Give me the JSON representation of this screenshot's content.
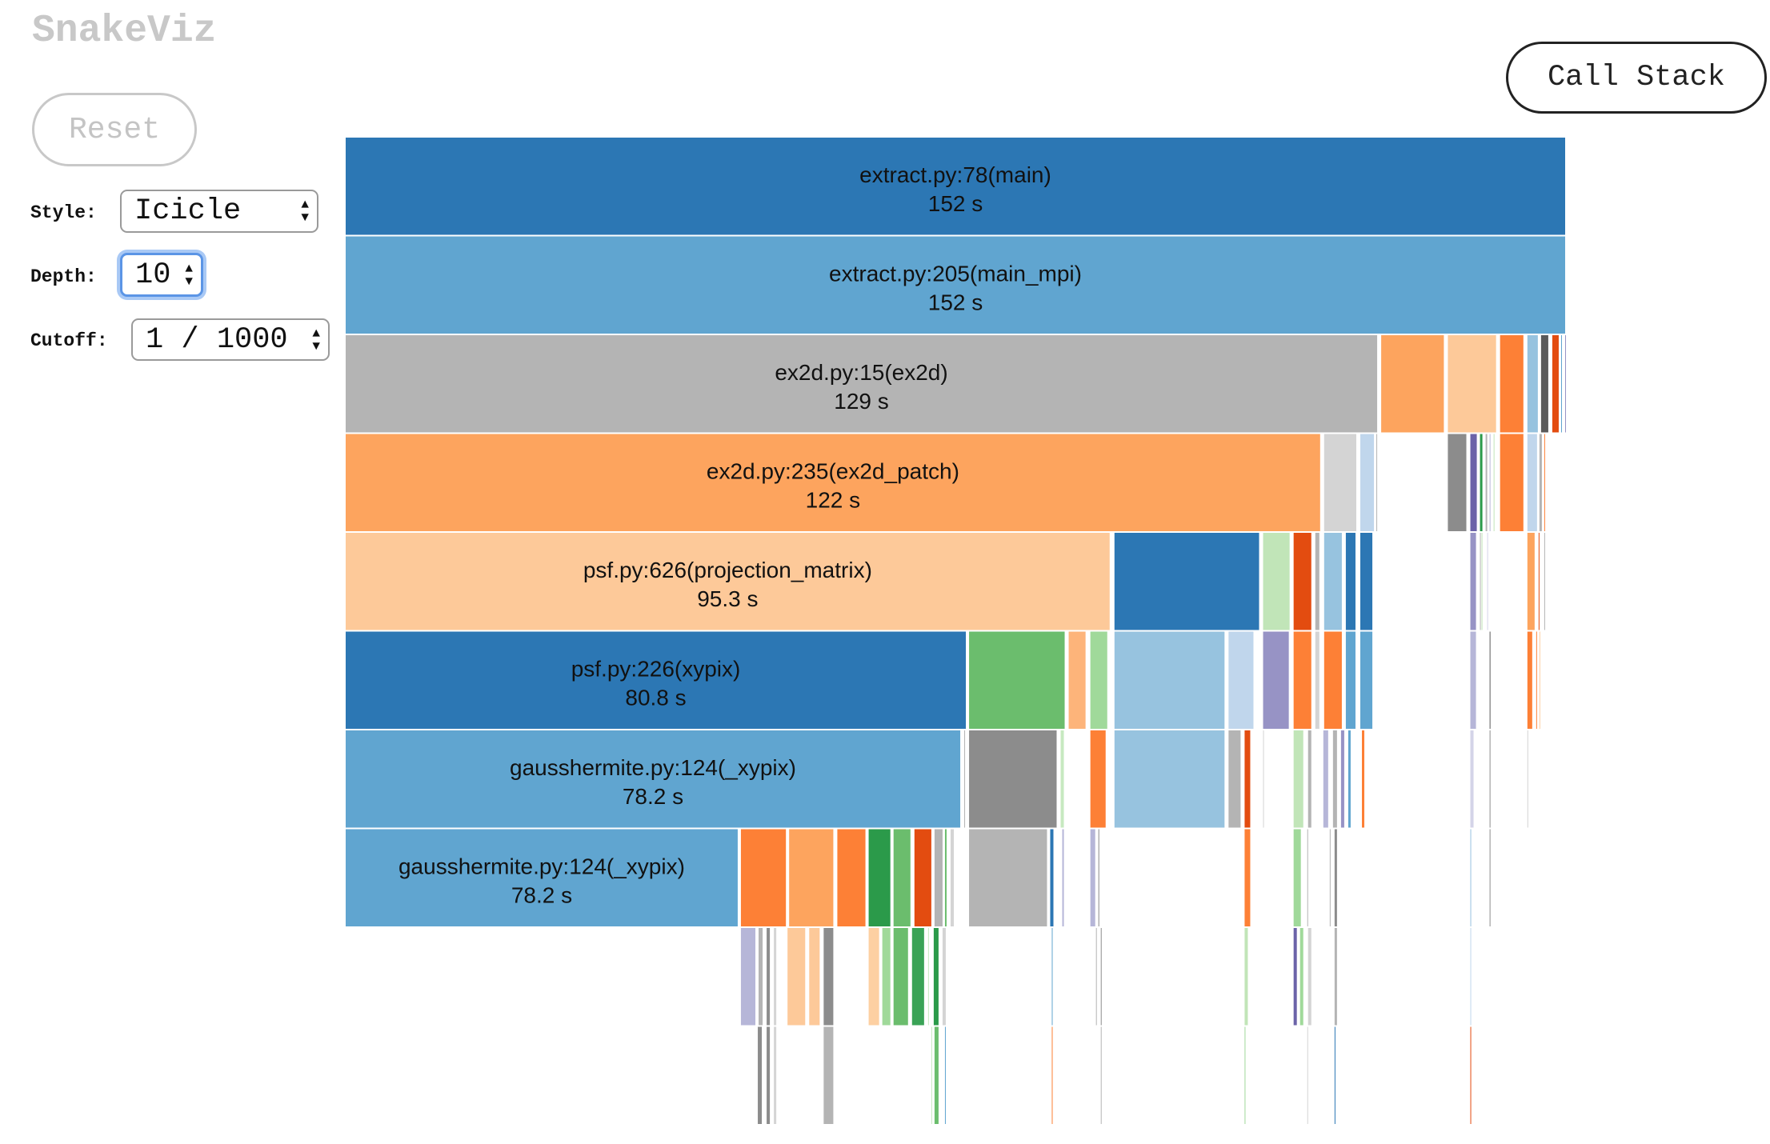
{
  "app": {
    "title": "SnakeViz"
  },
  "controls": {
    "reset_label": "Reset",
    "call_stack_label": "Call Stack",
    "style_label": "Style:",
    "style_value": "Icicle",
    "depth_label": "Depth:",
    "depth_value": "10",
    "cutoff_label": "Cutoff:",
    "cutoff_value": "1 / 1000"
  },
  "chart_data": {
    "type": "icicle",
    "total_seconds": 152,
    "depth": 10,
    "labeled_nodes": [
      {
        "depth": 0,
        "name": "extract.py:78(main)",
        "time": "152 s",
        "start": 0,
        "end": 152.0,
        "color": "#2c77b4"
      },
      {
        "depth": 1,
        "name": "extract.py:205(main_mpi)",
        "time": "152 s",
        "start": 0,
        "end": 152.0,
        "color": "#60a5d0"
      },
      {
        "depth": 2,
        "name": "ex2d.py:15(ex2d)",
        "time": "129 s",
        "start": 0,
        "end": 128.6,
        "color": "#b4b4b4"
      },
      {
        "depth": 3,
        "name": "ex2d.py:235(ex2d_patch)",
        "time": "122 s",
        "start": 0,
        "end": 121.5,
        "color": "#fda45e"
      },
      {
        "depth": 4,
        "name": "psf.py:626(projection_matrix)",
        "time": "95.3 s",
        "start": 0,
        "end": 95.3,
        "color": "#fdc999"
      },
      {
        "depth": 5,
        "name": "psf.py:226(xypix)",
        "time": "80.8 s",
        "start": 0,
        "end": 77.4,
        "color": "#2c77b4"
      },
      {
        "depth": 6,
        "name": "gausshermite.py:124(_xypix)",
        "time": "78.2 s",
        "start": 0,
        "end": 76.7,
        "color": "#60a5d0"
      },
      {
        "depth": 7,
        "name": "gausshermite.py:124(_xypix)",
        "time": "78.2 s",
        "start": 0,
        "end": 49.0,
        "color": "#60a5d0"
      }
    ],
    "unlabeled_nodes": [
      [
        2,
        128.9,
        136.9,
        "#fda45e"
      ],
      [
        2,
        137.2,
        143.4,
        "#fdc999"
      ],
      [
        2,
        143.7,
        146.8,
        "#fd8036"
      ],
      [
        2,
        147.1,
        148.6,
        "#97c3df"
      ],
      [
        2,
        148.8,
        149.9,
        "#5a5a5a"
      ],
      [
        2,
        150.2,
        151.2,
        "#e34c10"
      ],
      [
        2,
        151.3,
        151.6,
        "#60a5d0"
      ],
      [
        2,
        151.8,
        151.9,
        "#9793c5"
      ],
      [
        3,
        121.8,
        126.0,
        "#d4d4d4"
      ],
      [
        3,
        126.3,
        128.2,
        "#c0d6ec"
      ],
      [
        3,
        128.3,
        128.4,
        "#b4b4b4"
      ],
      [
        3,
        137.2,
        139.7,
        "#8c8c8c"
      ],
      [
        3,
        140.0,
        141.0,
        "#6b63a8"
      ],
      [
        3,
        141.2,
        141.7,
        "#2b9a4a"
      ],
      [
        3,
        141.9,
        142.3,
        "#b4b4b4"
      ],
      [
        3,
        142.4,
        142.7,
        "#b6b6d8"
      ],
      [
        3,
        142.9,
        143.0,
        "#c1e5b8"
      ],
      [
        3,
        143.7,
        146.8,
        "#fd8036"
      ],
      [
        3,
        147.1,
        148.5,
        "#c0d6ec"
      ],
      [
        3,
        148.6,
        149.1,
        "#b4b4b4"
      ],
      [
        3,
        149.2,
        149.4,
        "#fd8036"
      ],
      [
        4,
        95.7,
        113.9,
        "#2c77b4"
      ],
      [
        4,
        114.2,
        117.7,
        "#c1e5b8"
      ],
      [
        4,
        118.0,
        120.4,
        "#e34c10"
      ],
      [
        4,
        120.7,
        121.4,
        "#b4b4b4"
      ],
      [
        4,
        121.8,
        124.2,
        "#97c3df"
      ],
      [
        4,
        124.5,
        125.9,
        "#2c77b4"
      ],
      [
        4,
        126.3,
        128.0,
        "#2c77b4"
      ],
      [
        4,
        140.0,
        140.9,
        "#9793c5"
      ],
      [
        4,
        141.2,
        141.3,
        "#b4b4b4"
      ],
      [
        4,
        141.4,
        141.6,
        "#c1e5b8"
      ],
      [
        4,
        142.1,
        142.3,
        "#d4d4e8"
      ],
      [
        4,
        147.1,
        148.2,
        "#fda45e"
      ],
      [
        4,
        148.5,
        148.8,
        "#e34c10"
      ],
      [
        4,
        149.2,
        149.4,
        "#b4b4b4"
      ],
      [
        5,
        77.6,
        89.7,
        "#6bbd6d"
      ],
      [
        5,
        90.0,
        92.3,
        "#fdb47a"
      ],
      [
        5,
        92.7,
        95.0,
        "#a0d99a"
      ],
      [
        5,
        95.7,
        109.6,
        "#97c3df"
      ],
      [
        5,
        109.9,
        113.2,
        "#c0d6ec"
      ],
      [
        5,
        114.2,
        117.6,
        "#9793c5"
      ],
      [
        5,
        118.0,
        120.4,
        "#fd8036"
      ],
      [
        5,
        120.7,
        121.4,
        "#d4d4d4"
      ],
      [
        5,
        121.8,
        124.2,
        "#fd8036"
      ],
      [
        5,
        124.5,
        125.9,
        "#60a5d0"
      ],
      [
        5,
        126.3,
        128.0,
        "#60a5d0"
      ],
      [
        5,
        140.0,
        140.9,
        "#b6b6d8"
      ],
      [
        5,
        142.4,
        142.6,
        "#5a5a5a"
      ],
      [
        5,
        147.1,
        147.9,
        "#fd8036"
      ],
      [
        5,
        148.2,
        148.4,
        "#fd8036"
      ],
      [
        5,
        148.6,
        148.8,
        "#fdd0a2"
      ],
      [
        6,
        77.0,
        77.3,
        "#b4b4b4"
      ],
      [
        6,
        77.6,
        88.7,
        "#8c8c8c"
      ],
      [
        6,
        89.0,
        89.6,
        "#c7e9c0"
      ],
      [
        6,
        92.7,
        94.8,
        "#fd8036"
      ],
      [
        6,
        95.7,
        109.6,
        "#97c3df"
      ],
      [
        6,
        109.9,
        111.6,
        "#b4b4b4"
      ],
      [
        6,
        111.9,
        112.8,
        "#e34c10"
      ],
      [
        6,
        114.2,
        114.5,
        "#d4d4d4"
      ],
      [
        6,
        118.0,
        119.4,
        "#c1e5b8"
      ],
      [
        6,
        119.8,
        120.4,
        "#b4b4b4"
      ],
      [
        6,
        121.7,
        122.5,
        "#b6b6d8"
      ],
      [
        6,
        122.9,
        123.6,
        "#b4b4b4"
      ],
      [
        6,
        123.9,
        124.5,
        "#9793c5"
      ],
      [
        6,
        124.8,
        125.3,
        "#60a5d0"
      ],
      [
        6,
        126.5,
        127.0,
        "#fd8036"
      ],
      [
        6,
        140.0,
        140.6,
        "#d4d4e8"
      ],
      [
        6,
        142.4,
        142.6,
        "#8c8c8c"
      ],
      [
        6,
        147.1,
        147.2,
        "#d4d4d4"
      ],
      [
        7,
        49.2,
        55.0,
        "#fd8036"
      ],
      [
        7,
        55.2,
        60.9,
        "#fda45e"
      ],
      [
        7,
        61.2,
        64.9,
        "#fd8036"
      ],
      [
        7,
        65.1,
        68.0,
        "#2b9a4a"
      ],
      [
        7,
        68.2,
        70.5,
        "#6bbd6d"
      ],
      [
        7,
        70.8,
        73.1,
        "#e34c10"
      ],
      [
        7,
        73.3,
        74.5,
        "#b4b4b4"
      ],
      [
        7,
        74.6,
        75.0,
        "#6bbd6d"
      ],
      [
        7,
        75.3,
        75.9,
        "#d4d4d4"
      ],
      [
        7,
        77.6,
        87.5,
        "#b4b4b4"
      ],
      [
        7,
        87.7,
        88.3,
        "#2c77b4"
      ],
      [
        7,
        89.2,
        89.6,
        "#b6b6d8"
      ],
      [
        7,
        92.7,
        93.5,
        "#b6b6d8"
      ],
      [
        7,
        93.7,
        94.0,
        "#8c8c8c"
      ],
      [
        7,
        111.9,
        112.8,
        "#fd8036"
      ],
      [
        7,
        118.0,
        119.1,
        "#a0d99a"
      ],
      [
        7,
        119.7,
        119.8,
        "#b4b4b4"
      ],
      [
        7,
        122.5,
        122.8,
        "#b4b4b4"
      ],
      [
        7,
        123.1,
        123.6,
        "#8c8c8c"
      ],
      [
        7,
        140.0,
        140.3,
        "#97c3df"
      ],
      [
        7,
        142.4,
        142.6,
        "#8c8c8c"
      ],
      [
        8,
        49.2,
        51.2,
        "#b6b6d8"
      ],
      [
        8,
        51.4,
        52.1,
        "#b4b4b4"
      ],
      [
        8,
        52.4,
        53.0,
        "#8c8c8c"
      ],
      [
        8,
        53.3,
        53.8,
        "#d4d4d4"
      ],
      [
        8,
        55.0,
        57.4,
        "#fdc999"
      ],
      [
        8,
        57.7,
        59.2,
        "#fdc999"
      ],
      [
        8,
        59.5,
        60.9,
        "#8c8c8c"
      ],
      [
        8,
        65.1,
        66.6,
        "#fdd0a2"
      ],
      [
        8,
        66.8,
        68.0,
        "#a0d99a"
      ],
      [
        8,
        68.2,
        70.2,
        "#6bbd6d"
      ],
      [
        8,
        70.5,
        72.2,
        "#3aa356"
      ],
      [
        8,
        72.5,
        72.8,
        "#c7e9c0"
      ],
      [
        8,
        73.2,
        74.0,
        "#2b9a4a"
      ],
      [
        8,
        74.3,
        74.9,
        "#d4d4d4"
      ],
      [
        8,
        87.9,
        88.0,
        "#60a5d0"
      ],
      [
        8,
        93.4,
        93.7,
        "#b4b4b4"
      ],
      [
        8,
        94.0,
        94.2,
        "#8c8c8c"
      ],
      [
        8,
        111.9,
        112.5,
        "#c1e5b8"
      ],
      [
        8,
        118.0,
        118.6,
        "#6b63a8"
      ],
      [
        8,
        118.8,
        119.4,
        "#a0d99a"
      ],
      [
        8,
        119.8,
        120.4,
        "#d4d4d4"
      ],
      [
        8,
        123.1,
        123.6,
        "#b4b4b4"
      ],
      [
        8,
        140.0,
        140.3,
        "#c0d6ec"
      ],
      [
        9,
        51.3,
        52.0,
        "#8c8c8c"
      ],
      [
        9,
        52.4,
        53.0,
        "#8c8c8c"
      ],
      [
        9,
        53.3,
        53.8,
        "#d4d4d4"
      ],
      [
        9,
        59.5,
        60.9,
        "#b4b4b4"
      ],
      [
        9,
        72.9,
        73.2,
        "#c7e9c0"
      ],
      [
        9,
        73.3,
        74.0,
        "#6bbd6d"
      ],
      [
        9,
        74.6,
        74.9,
        "#60a5d0"
      ],
      [
        9,
        87.9,
        88.2,
        "#fd8036"
      ],
      [
        9,
        94.0,
        94.2,
        "#b4b4b4"
      ],
      [
        9,
        111.9,
        112.2,
        "#a0d99a"
      ],
      [
        9,
        119.7,
        119.8,
        "#d4d4d4"
      ],
      [
        9,
        123.1,
        123.4,
        "#2c77b4"
      ],
      [
        9,
        140.0,
        140.3,
        "#e34c10"
      ]
    ]
  }
}
